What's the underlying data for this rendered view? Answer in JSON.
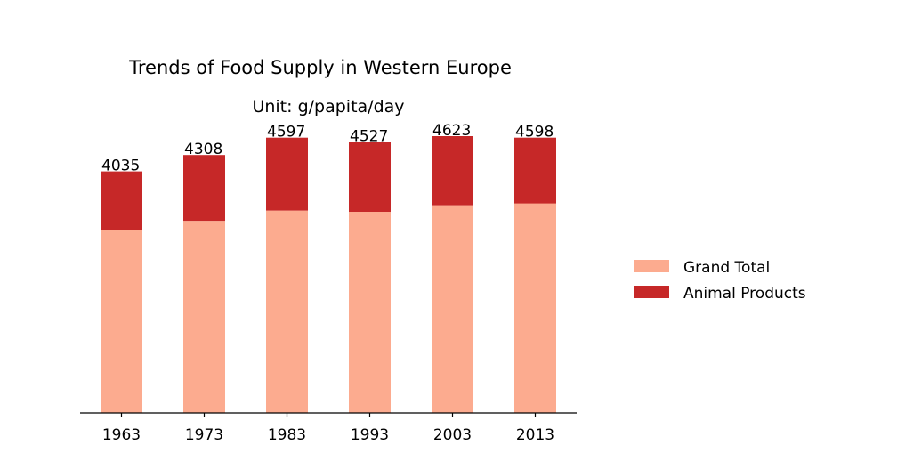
{
  "chart_data": {
    "type": "bar",
    "stacked": true,
    "title": "Trends of Food Supply in Western Europe",
    "subtitle": "Unit: g/papita/day",
    "xlabel": "",
    "ylabel": "",
    "categories": [
      "1963",
      "1973",
      "1983",
      "1993",
      "2003",
      "2013"
    ],
    "series": [
      {
        "name": "Grand Total",
        "color": "#fcab8f",
        "values": [
          3050,
          3210,
          3380,
          3360,
          3470,
          3500
        ]
      },
      {
        "name": "Animal Products",
        "color": "#c62828",
        "values": [
          985,
          1098,
          1217,
          1167,
          1153,
          1098
        ]
      }
    ],
    "totals": [
      "4035",
      "4308",
      "4597",
      "4527",
      "4623",
      "4598"
    ],
    "ylim": [
      0,
      4623
    ],
    "grid": false,
    "legend_position": "right",
    "y_axis_visible": false
  }
}
